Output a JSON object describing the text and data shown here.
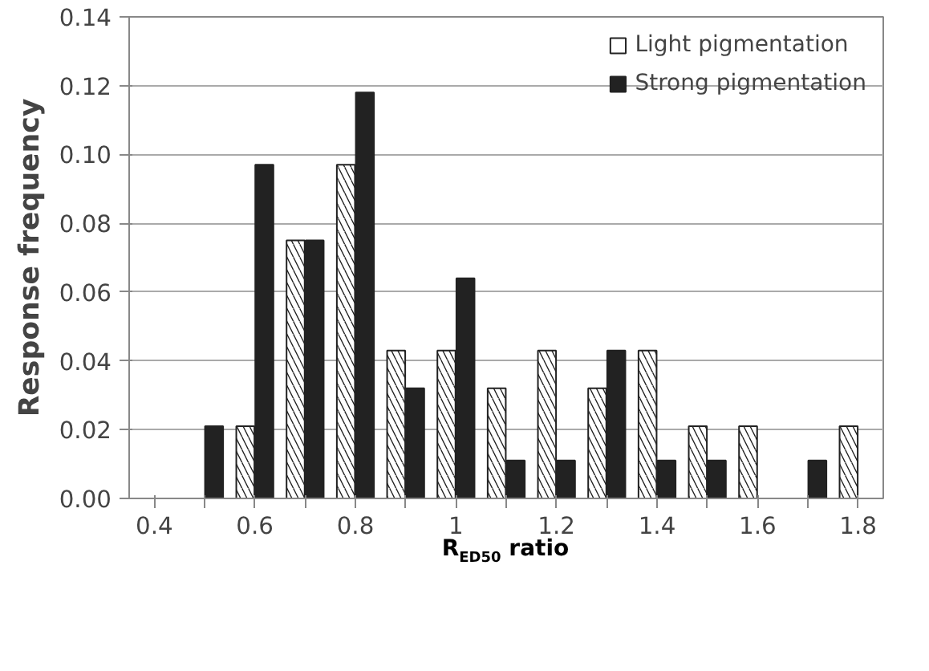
{
  "chart_data": {
    "type": "bar",
    "categories": [
      "0.4",
      null,
      "0.6",
      null,
      "0.8",
      null,
      "1",
      null,
      "1.2",
      null,
      "1.4",
      null,
      "1.6",
      null,
      "1.8"
    ],
    "series": [
      {
        "name": "Light pigmentation",
        "color": "#ffffff",
        "values": [
          null,
          null,
          0.021,
          0.075,
          0.097,
          0.043,
          0.043,
          0.032,
          0.043,
          0.032,
          0.043,
          0.021,
          0.021,
          null,
          0.021
        ]
      },
      {
        "name": "Strong pigmentation",
        "color": "#222222",
        "values": [
          null,
          0.021,
          0.097,
          0.075,
          0.118,
          0.032,
          0.064,
          0.011,
          0.011,
          0.043,
          0.011,
          0.011,
          null,
          0.011,
          null
        ]
      }
    ],
    "xlabel": "R$_{ED50}$ ratio",
    "ylabel": "Response frequency",
    "ylim": [
      0,
      0.14
    ],
    "yticks": [
      {
        "value": 0,
        "label": "0.00"
      },
      {
        "value": 0.02,
        "label": "0.02"
      },
      {
        "value": 0.04,
        "label": "0.04"
      },
      {
        "value": 0.06,
        "label": "0.06"
      },
      {
        "value": 0.08,
        "label": "0.08"
      },
      {
        "value": 0.1,
        "label": "0.10"
      },
      {
        "value": 0.12,
        "label": "0.12"
      },
      {
        "value": 0.14,
        "label": "0.14"
      }
    ],
    "grid": "y",
    "legend": "top right"
  }
}
